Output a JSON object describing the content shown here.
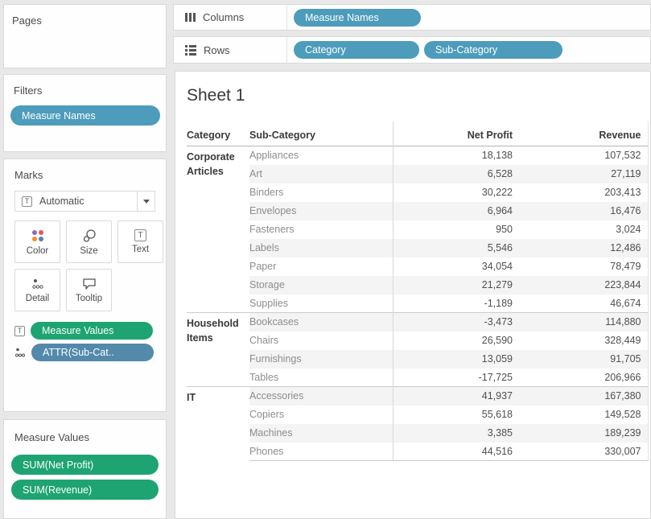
{
  "left_panel": {
    "pages": {
      "title": "Pages"
    },
    "filters": {
      "title": "Filters",
      "pills": [
        {
          "label": "Measure Names",
          "color": "blue"
        }
      ]
    },
    "marks": {
      "title": "Marks",
      "mark_type": {
        "label": "Automatic",
        "icon": "text-box-icon"
      },
      "buttons": [
        {
          "label": "Color",
          "icon": "color-dots-icon"
        },
        {
          "label": "Size",
          "icon": "size-circles-icon"
        },
        {
          "label": "Text",
          "icon": "text-box-icon"
        },
        {
          "label": "Detail",
          "icon": "detail-dots-icon"
        },
        {
          "label": "Tooltip",
          "icon": "tooltip-bubble-icon"
        }
      ],
      "pills": [
        {
          "label": "Measure Values",
          "color": "green",
          "icon": "text-box-icon"
        },
        {
          "label": "ATTR(Sub-Cat..",
          "color": "blue",
          "icon": "detail-dots-icon"
        }
      ]
    },
    "measure_values": {
      "title": "Measure Values",
      "pills": [
        {
          "label": "SUM(Net Profit)",
          "color": "green"
        },
        {
          "label": "SUM(Revenue)",
          "color": "green"
        }
      ]
    }
  },
  "shelves": {
    "columns": {
      "label": "Columns",
      "icon": "columns-icon",
      "pills": [
        "Measure Names"
      ]
    },
    "rows": {
      "label": "Rows",
      "icon": "rows-icon",
      "pills": [
        "Category",
        "Sub-Category"
      ]
    }
  },
  "sheet": {
    "title": "Sheet 1",
    "table": {
      "headers": [
        "Category",
        "Sub-Category",
        "Net Profit",
        "Revenue"
      ],
      "groups": [
        {
          "category": "Corporate Articles",
          "items": [
            {
              "sub_category": "Appliances",
              "net_profit": "18,138",
              "revenue": "107,532"
            },
            {
              "sub_category": "Art",
              "net_profit": "6,528",
              "revenue": "27,119"
            },
            {
              "sub_category": "Binders",
              "net_profit": "30,222",
              "revenue": "203,413"
            },
            {
              "sub_category": "Envelopes",
              "net_profit": "6,964",
              "revenue": "16,476"
            },
            {
              "sub_category": "Fasteners",
              "net_profit": "950",
              "revenue": "3,024"
            },
            {
              "sub_category": "Labels",
              "net_profit": "5,546",
              "revenue": "12,486"
            },
            {
              "sub_category": "Paper",
              "net_profit": "34,054",
              "revenue": "78,479"
            },
            {
              "sub_category": "Storage",
              "net_profit": "21,279",
              "revenue": "223,844"
            },
            {
              "sub_category": "Supplies",
              "net_profit": "-1,189",
              "revenue": "46,674"
            }
          ]
        },
        {
          "category": "Household Items",
          "items": [
            {
              "sub_category": "Bookcases",
              "net_profit": "-3,473",
              "revenue": "114,880"
            },
            {
              "sub_category": "Chairs",
              "net_profit": "26,590",
              "revenue": "328,449"
            },
            {
              "sub_category": "Furnishings",
              "net_profit": "13,059",
              "revenue": "91,705"
            },
            {
              "sub_category": "Tables",
              "net_profit": "-17,725",
              "revenue": "206,966"
            }
          ]
        },
        {
          "category": "IT",
          "items": [
            {
              "sub_category": "Accessories",
              "net_profit": "41,937",
              "revenue": "167,380"
            },
            {
              "sub_category": "Copiers",
              "net_profit": "55,618",
              "revenue": "149,528"
            },
            {
              "sub_category": "Machines",
              "net_profit": "3,385",
              "revenue": "189,239"
            },
            {
              "sub_category": "Phones",
              "net_profit": "44,516",
              "revenue": "330,007"
            }
          ]
        }
      ]
    }
  },
  "colors": {
    "dimension_pill_blue": "#4d9cbc",
    "attr_pill_blue": "#5389ab",
    "measure_pill_green": "#1ea473",
    "row_band_gray": "#f4f4f4",
    "background_gray": "#e8e8e8",
    "color_icon_dots": [
      "#8d6cab",
      "#e15759",
      "#f28e2b",
      "#5a7fb5"
    ]
  }
}
